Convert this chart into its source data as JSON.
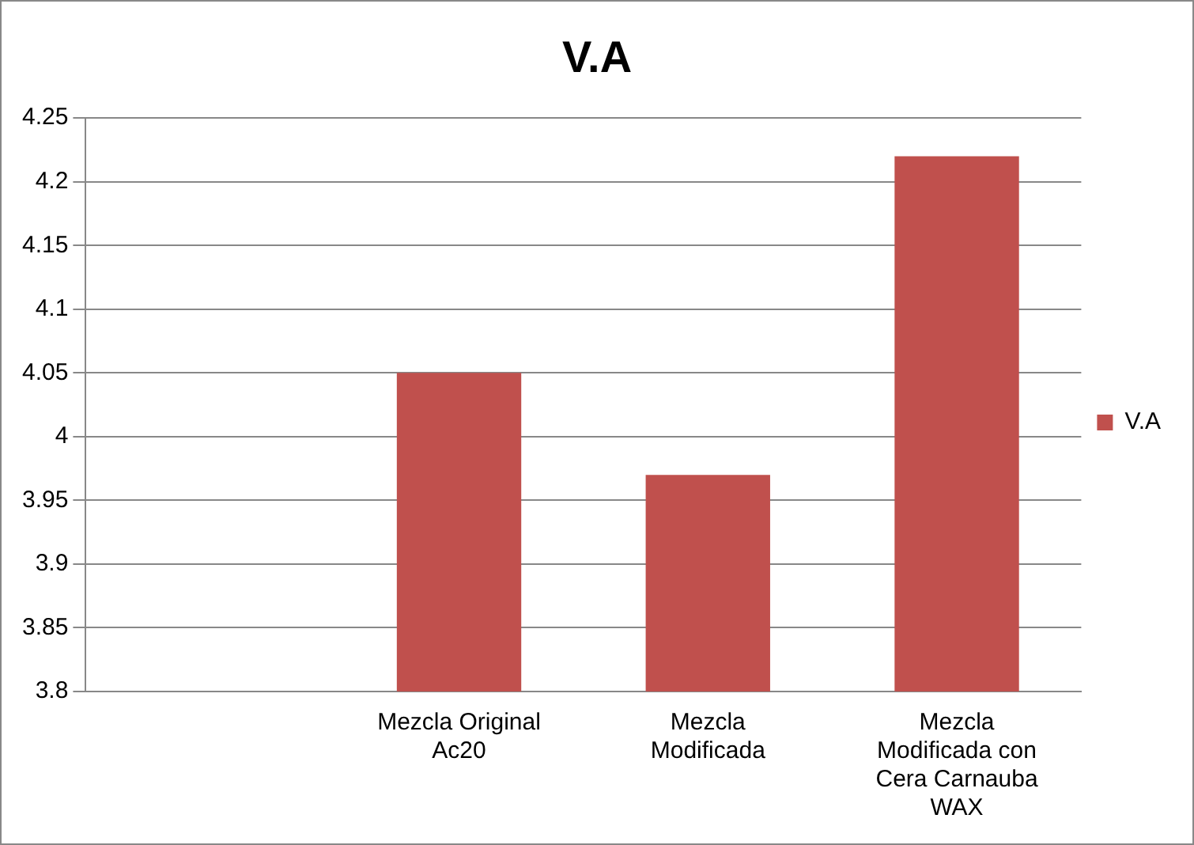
{
  "chart_data": {
    "type": "bar",
    "title": "V.A",
    "categories": [
      null,
      "Mezcla Original Ac20",
      "Mezcla Modificada",
      "Mezcla Modificada con Cera Carnauba WAX"
    ],
    "series": [
      {
        "name": "V.A",
        "color": "#c0504d",
        "values": [
          null,
          4.05,
          3.97,
          4.22
        ]
      }
    ],
    "ylim": [
      3.8,
      4.25
    ],
    "yticks": [
      3.8,
      3.85,
      3.9,
      3.95,
      4,
      4.05,
      4.1,
      4.15,
      4.2,
      4.25
    ],
    "grid": "y",
    "legend": "right"
  }
}
